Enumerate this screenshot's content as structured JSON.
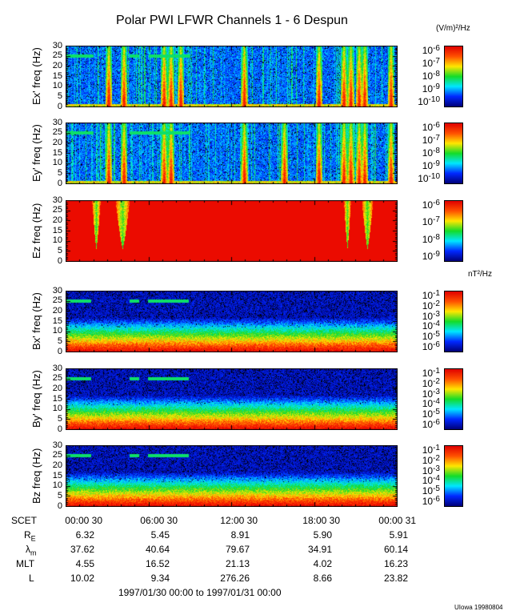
{
  "title": "Polar PWI LFWR Channels 1 - 6 Despun",
  "e_unit": "(V/m)²/Hz",
  "b_unit": "nT²/Hz",
  "credit": "UIowa 19980804",
  "date_range": "1997/01/30 00:00 to 1997/01/31 00:00",
  "chart_data": {
    "type": "heatmap",
    "x_range_hours": [
      0,
      24
    ],
    "y_ticks": [
      "30",
      "25",
      "20",
      "15",
      "10",
      "5",
      "0"
    ],
    "ylim": [
      0,
      30
    ],
    "panels": [
      {
        "label": "Ex' freq (Hz)",
        "kind": "E",
        "cbar": [
          "-6",
          "-7",
          "-8",
          "-9",
          "-10"
        ],
        "bursts": [
          3.1,
          4.2,
          7.1,
          7.6,
          8.3,
          12.9,
          18.3,
          20.1,
          20.6,
          21.2,
          21.6,
          23.5
        ],
        "line25": [
          [
            0,
            2
          ],
          [
            4.6,
            5.3
          ],
          [
            6,
            9
          ]
        ]
      },
      {
        "label": "Ey' freq (Hz)",
        "kind": "E",
        "cbar": [
          "-6",
          "-7",
          "-8",
          "-9",
          "-10"
        ],
        "bursts": [
          3.1,
          4.2,
          7.1,
          7.6,
          12.9,
          15.8,
          18.3,
          20.1,
          20.6,
          21.2,
          21.6,
          23.5
        ],
        "line25": [
          [
            0,
            2
          ],
          [
            4.6,
            9
          ]
        ]
      },
      {
        "label": "Ez freq (Hz)",
        "kind": "Ez",
        "cbar": [
          "-6",
          "-7",
          "-8",
          "-9"
        ],
        "notches": [
          [
            1.9,
            2.5
          ],
          [
            3.6,
            4.6
          ],
          [
            20.1,
            20.6
          ],
          [
            21.4,
            22.2
          ]
        ]
      },
      {
        "label": "Bx' freq (Hz)",
        "kind": "B",
        "cbar": [
          "-1",
          "-2",
          "-3",
          "-4",
          "-5",
          "-6"
        ],
        "line25": [
          [
            0,
            1.8
          ],
          [
            4.6,
            5.3
          ],
          [
            5.9,
            8.9
          ]
        ]
      },
      {
        "label": "By' freq (Hz)",
        "kind": "B",
        "cbar": [
          "-1",
          "-2",
          "-3",
          "-4",
          "-5",
          "-6"
        ],
        "line25": [
          [
            0,
            1.8
          ],
          [
            4.6,
            5.3
          ],
          [
            5.9,
            8.9
          ]
        ]
      },
      {
        "label": "Bz freq (Hz)",
        "kind": "B",
        "cbar": [
          "-1",
          "-2",
          "-3",
          "-4",
          "-5",
          "-6"
        ],
        "line25": [
          [
            0,
            1.8
          ],
          [
            4.6,
            5.3
          ],
          [
            5.9,
            8.9
          ]
        ]
      }
    ]
  },
  "ephemeris": {
    "labels": [
      "SCET",
      "RE",
      "λm",
      "MLT",
      "L"
    ],
    "times": [
      "00:00 30",
      "06:00 30",
      "12:00 30",
      "18:00 30",
      "00:00 31"
    ],
    "RE": [
      "6.32",
      "5.45",
      "8.91",
      "5.90",
      "5.91"
    ],
    "lambda": [
      "37.62",
      "40.64",
      "79.67",
      "34.91",
      "60.14"
    ],
    "MLT": [
      "4.55",
      "16.52",
      "21.13",
      "4.02",
      "16.23"
    ],
    "L": [
      "10.02",
      "9.34",
      "276.26",
      "8.66",
      "23.82"
    ]
  }
}
